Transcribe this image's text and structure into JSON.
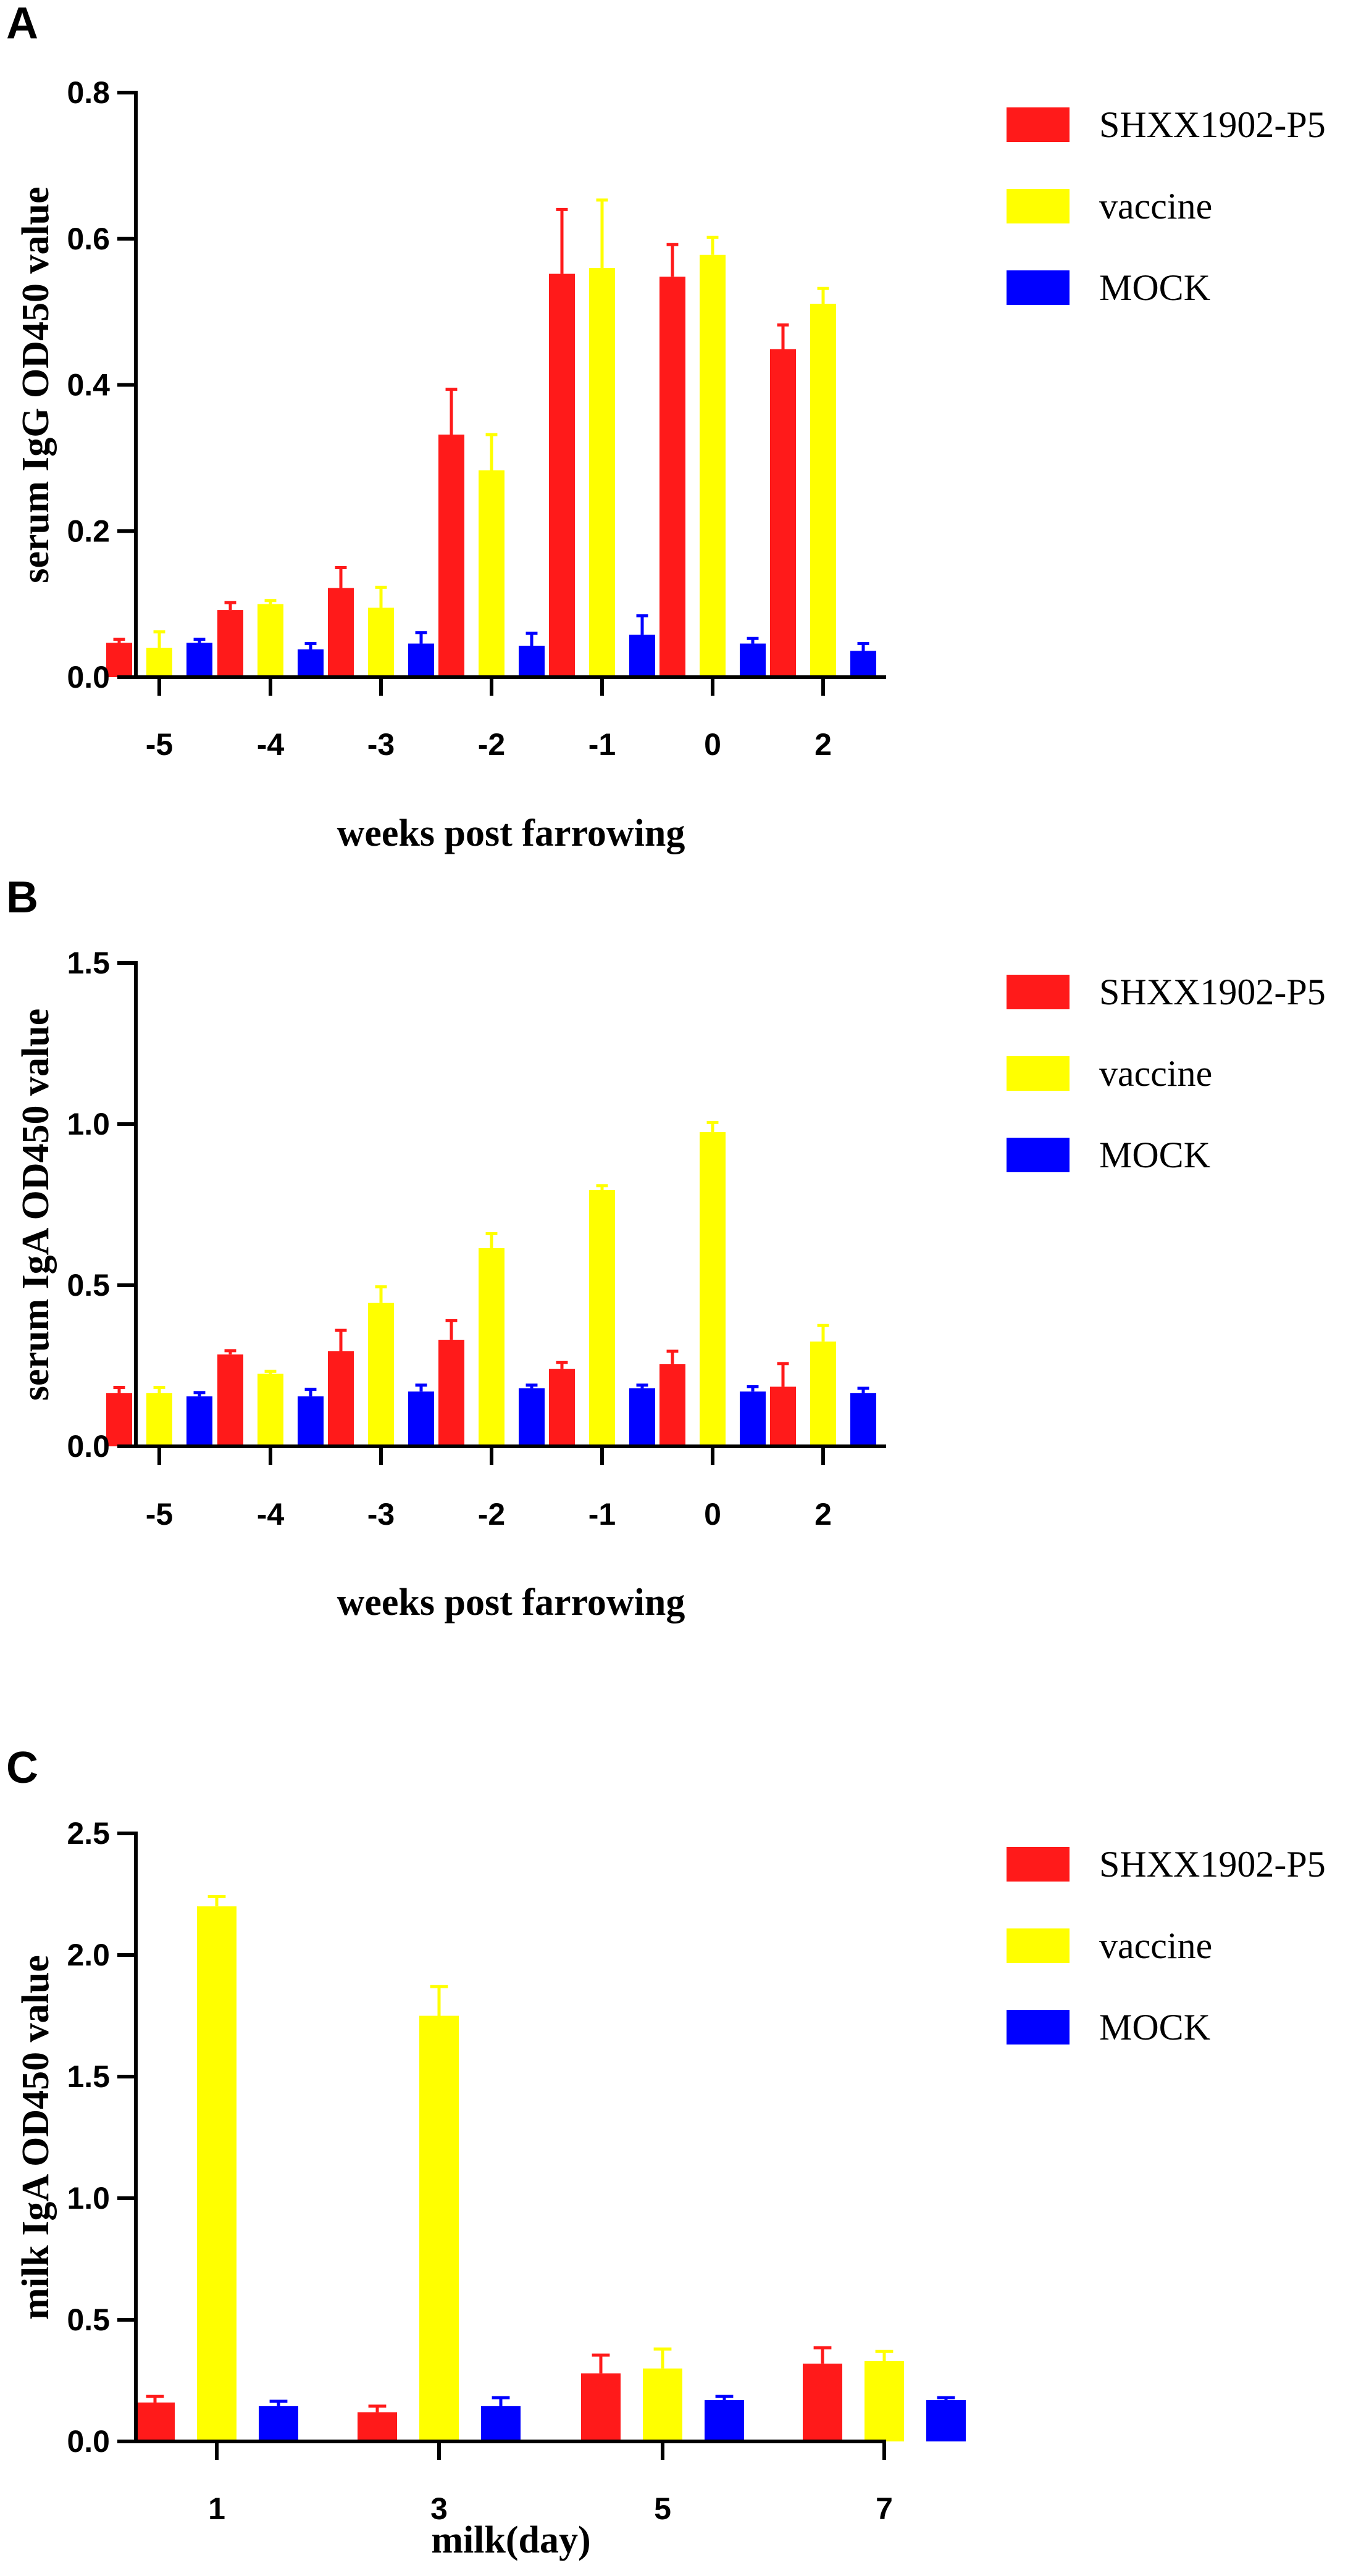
{
  "colors": {
    "series_a": "#ff1a1a",
    "series_b": "#ffff00",
    "series_c": "#0000ff"
  },
  "chart_data": [
    {
      "type": "bar",
      "panel": "A",
      "categories": [
        "-5",
        "-4",
        "-3",
        "-2",
        "-1",
        "0",
        "2"
      ],
      "xlabel": "weeks post farrowing",
      "ylabel": "serum IgG OD450 value",
      "ylim": [
        0,
        0.8
      ],
      "yticks": [
        "0.0",
        "0.2",
        "0.4",
        "0.6",
        "0.8"
      ],
      "legend_position": "top-right",
      "series": [
        {
          "name": "SHXX1902-P5",
          "color": "#ff1a1a",
          "values": [
            0.047,
            0.092,
            0.122,
            0.332,
            0.552,
            0.548,
            0.449
          ],
          "errors": [
            0.005,
            0.01,
            0.028,
            0.062,
            0.088,
            0.044,
            0.033
          ]
        },
        {
          "name": "vaccine",
          "color": "#ffff00",
          "values": [
            0.04,
            0.1,
            0.095,
            0.283,
            0.56,
            0.578,
            0.511
          ],
          "errors": [
            0.022,
            0.005,
            0.028,
            0.049,
            0.093,
            0.024,
            0.021
          ]
        },
        {
          "name": "MOCK",
          "color": "#0000ff",
          "values": [
            0.047,
            0.038,
            0.046,
            0.043,
            0.058,
            0.046,
            0.036
          ],
          "errors": [
            0.005,
            0.008,
            0.015,
            0.017,
            0.026,
            0.007,
            0.01
          ]
        }
      ]
    },
    {
      "type": "bar",
      "panel": "B",
      "categories": [
        "-5",
        "-4",
        "-3",
        "-2",
        "-1",
        "0",
        "2"
      ],
      "xlabel": "weeks post farrowing",
      "ylabel": "serum IgA OD450 value",
      "ylim": [
        0,
        1.5
      ],
      "yticks": [
        "0.0",
        "0.5",
        "1.0",
        "1.5"
      ],
      "legend_position": "top-right",
      "series": [
        {
          "name": "SHXX1902-P5",
          "color": "#ff1a1a",
          "values": [
            0.165,
            0.285,
            0.295,
            0.33,
            0.24,
            0.255,
            0.185
          ],
          "errors": [
            0.018,
            0.012,
            0.065,
            0.06,
            0.02,
            0.04,
            0.072
          ]
        },
        {
          "name": "vaccine",
          "color": "#ffff00",
          "values": [
            0.165,
            0.225,
            0.445,
            0.615,
            0.795,
            0.975,
            0.325
          ],
          "errors": [
            0.018,
            0.008,
            0.05,
            0.045,
            0.014,
            0.03,
            0.05
          ]
        },
        {
          "name": "MOCK",
          "color": "#0000ff",
          "values": [
            0.155,
            0.155,
            0.17,
            0.18,
            0.18,
            0.17,
            0.165
          ],
          "errors": [
            0.012,
            0.022,
            0.02,
            0.01,
            0.01,
            0.015,
            0.015
          ]
        }
      ]
    },
    {
      "type": "bar",
      "panel": "C",
      "categories": [
        "1",
        "3",
        "5",
        "7"
      ],
      "xlabel": "milk(day)",
      "ylabel": "milk IgA OD450 value",
      "ylim": [
        0,
        2.5
      ],
      "yticks": [
        "0.0",
        "0.5",
        "1.0",
        "1.5",
        "2.0",
        "2.5"
      ],
      "legend_position": "top-right",
      "series": [
        {
          "name": "SHXX1902-P5",
          "color": "#ff1a1a",
          "values": [
            0.16,
            0.12,
            0.28,
            0.32
          ],
          "errors": [
            0.025,
            0.025,
            0.075,
            0.065
          ]
        },
        {
          "name": "vaccine",
          "color": "#ffff00",
          "values": [
            2.2,
            1.75,
            0.3,
            0.33
          ],
          "errors": [
            0.04,
            0.12,
            0.08,
            0.04
          ]
        },
        {
          "name": "MOCK",
          "color": "#0000ff",
          "values": [
            0.145,
            0.145,
            0.17,
            0.17
          ],
          "errors": [
            0.02,
            0.035,
            0.015,
            0.01
          ]
        }
      ]
    }
  ]
}
